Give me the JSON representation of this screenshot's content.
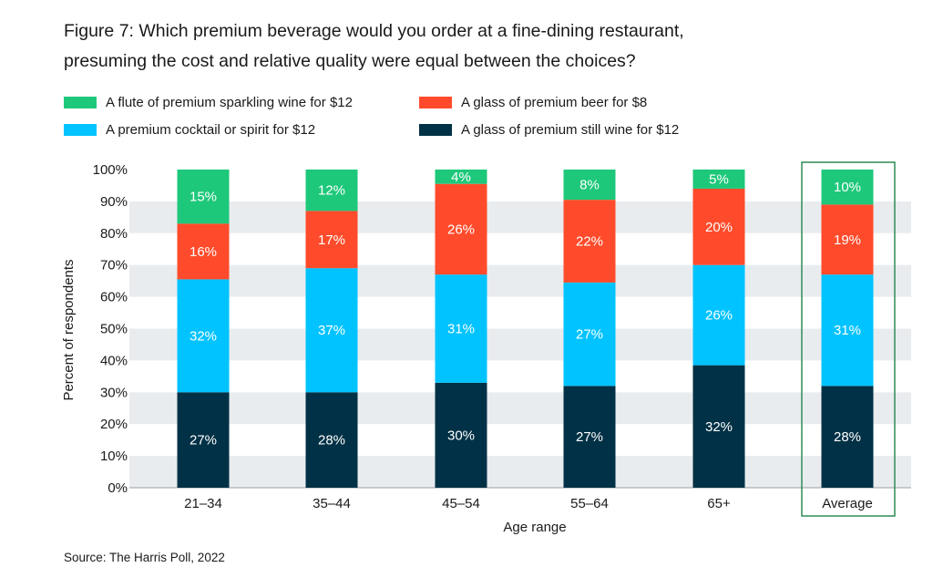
{
  "title_line1": "Figure 7: Which premium beverage would you order at a fine-dining restaurant,",
  "title_line2": "presuming the cost and relative quality were equal between the choices?",
  "source": "Source: The Harris Poll, 2022",
  "colors": {
    "still_wine": "#003146",
    "cocktail": "#00c3ff",
    "beer": "#ff4b2b",
    "sparkling": "#1ec87a",
    "highlight_box": "#2e8b57",
    "band": "#e9ecef"
  },
  "legend": [
    {
      "label": "A flute of premium sparkling wine for $12",
      "color": "#1ec87a"
    },
    {
      "label": "A glass of premium beer for $8",
      "color": "#ff4b2b"
    },
    {
      "label": "A premium cocktail or spirit for $12",
      "color": "#00c3ff"
    },
    {
      "label": "A glass of premium still wine for $12",
      "color": "#003146"
    }
  ],
  "chart_data": {
    "type": "bar",
    "stacked": true,
    "title": "Figure 7: Which premium beverage would you order at a fine-dining restaurant, presuming the cost and relative quality were equal between the choices?",
    "xlabel": "Age range",
    "ylabel": "Percent of respondents",
    "ylim": [
      0,
      100
    ],
    "yticks": [
      "0%",
      "10%",
      "20%",
      "30%",
      "40%",
      "50%",
      "60%",
      "70%",
      "80%",
      "90%",
      "100%"
    ],
    "categories": [
      "21–34",
      "35–44",
      "45–54",
      "55–64",
      "65+",
      "Average"
    ],
    "highlighted_category": "Average",
    "grid": "alternating horizontal bands",
    "legend_position": "top",
    "series": [
      {
        "name": "A glass of premium still wine for $12",
        "color": "#003146",
        "values": [
          30,
          30,
          33,
          32,
          38.5,
          32
        ],
        "labels": [
          "27%",
          "28%",
          "30%",
          "27%",
          "32%",
          "28%"
        ]
      },
      {
        "name": "A premium cocktail or spirit for $12",
        "color": "#00c3ff",
        "values": [
          35.5,
          39,
          34,
          32.5,
          31.5,
          35
        ],
        "labels": [
          "32%",
          "37%",
          "31%",
          "27%",
          "26%",
          "31%"
        ]
      },
      {
        "name": "A glass of premium beer for $8",
        "color": "#ff4b2b",
        "values": [
          17.5,
          18,
          28.5,
          26,
          24,
          22
        ],
        "labels": [
          "16%",
          "17%",
          "26%",
          "22%",
          "20%",
          "19%"
        ]
      },
      {
        "name": "A flute of premium sparkling wine for $12",
        "color": "#1ec87a",
        "values": [
          17,
          13,
          4.5,
          9.5,
          6,
          11
        ],
        "labels": [
          "15%",
          "12%",
          "4%",
          "8%",
          "5%",
          "10%"
        ]
      }
    ]
  }
}
